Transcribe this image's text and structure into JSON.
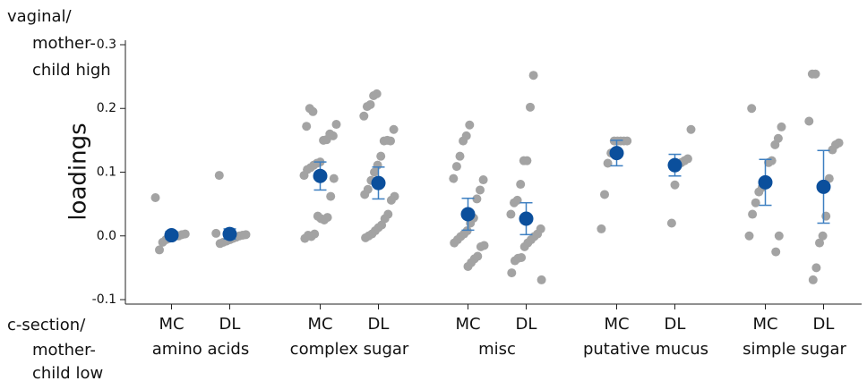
{
  "chart_data": {
    "type": "strip",
    "y_label": "loadings",
    "top_label": [
      "vaginal/",
      "mother-",
      "child high"
    ],
    "bottom_label": [
      "c-section/",
      "mother-",
      "child low"
    ],
    "ylim": [
      -0.107,
      0.307
    ],
    "yticks": [
      0.3,
      0.2,
      0.1,
      {
        "value": 0,
        "label": "0.0"
      },
      -0.1
    ],
    "point_color": "#a3a3a3",
    "mean_color": "#0b4f9c",
    "error_color": "#3d7fc1",
    "groups": [
      {
        "name": "amino acids",
        "series": [
          {
            "name": "MC",
            "points": [
              0.06,
              0.003,
              0.002,
              0.0,
              0.0,
              -0.002,
              -0.004,
              -0.006,
              -0.01,
              -0.022
            ],
            "mean": 0.001,
            "error": 0.006
          },
          {
            "name": "DL",
            "points": [
              0.095,
              0.004,
              0.002,
              0.001,
              0.0,
              -0.002,
              -0.004,
              -0.006,
              -0.008,
              -0.01,
              -0.012
            ],
            "mean": 0.003,
            "error": 0.008
          }
        ]
      },
      {
        "name": "complex sugar",
        "series": [
          {
            "name": "MC",
            "points": [
              0.195,
              0.2,
              0.172,
              0.175,
              0.157,
              0.16,
              0.151,
              0.15,
              0.116,
              0.114,
              0.111,
              0.107,
              0.104,
              0.095,
              0.09,
              0.062,
              0.029,
              0.025,
              0.027,
              0.031,
              0.003,
              -0.001,
              0.001,
              -0.004
            ],
            "mean": 0.094,
            "error": 0.022
          },
          {
            "name": "DL",
            "points": [
              0.223,
              0.22,
              0.206,
              0.203,
              0.188,
              0.167,
              0.149,
              0.15,
              0.149,
              0.125,
              0.111,
              0.1,
              0.087,
              0.073,
              0.065,
              0.062,
              0.056,
              0.034,
              0.027,
              0.017,
              0.013,
              0.008,
              0.003,
              0.0,
              -0.003
            ],
            "mean": 0.083,
            "error": 0.025
          }
        ]
      },
      {
        "name": "misc",
        "series": [
          {
            "name": "MC",
            "points": [
              0.174,
              0.157,
              0.149,
              0.125,
              0.109,
              0.09,
              0.088,
              0.072,
              0.058,
              0.028,
              0.02,
              0.008,
              0.003,
              -0.001,
              -0.006,
              -0.011,
              -0.015,
              -0.017,
              -0.032,
              -0.036,
              -0.042,
              -0.048
            ],
            "mean": 0.034,
            "error": 0.025
          },
          {
            "name": "DL",
            "points": [
              0.252,
              0.202,
              0.118,
              0.118,
              0.081,
              0.056,
              0.052,
              0.034,
              0.011,
              0.003,
              -0.001,
              -0.006,
              -0.011,
              -0.017,
              -0.034,
              -0.035,
              -0.039,
              -0.058,
              -0.069
            ],
            "mean": 0.027,
            "error": 0.025
          }
        ]
      },
      {
        "name": "putative mucus",
        "series": [
          {
            "name": "MC",
            "points": [
              0.149,
              0.149,
              0.149,
              0.149,
              0.149,
              0.13,
              0.114,
              0.065,
              0.011
            ],
            "mean": 0.13,
            "error": 0.02
          },
          {
            "name": "DL",
            "points": [
              0.167,
              0.121,
              0.118,
              0.115,
              0.111,
              0.08,
              0.02
            ],
            "mean": 0.111,
            "error": 0.017
          }
        ]
      },
      {
        "name": "simple sugar",
        "series": [
          {
            "name": "MC",
            "points": [
              0.2,
              0.171,
              0.153,
              0.143,
              0.118,
              0.115,
              0.083,
              0.076,
              0.069,
              0.052,
              0.034,
              0.0,
              0.0,
              -0.025
            ],
            "mean": 0.084,
            "error": 0.036
          },
          {
            "name": "DL",
            "points": [
              0.254,
              0.254,
              0.18,
              0.146,
              0.143,
              0.135,
              0.09,
              0.031,
              0.0,
              -0.011,
              -0.05,
              -0.069
            ],
            "mean": 0.077,
            "error": 0.057
          }
        ]
      }
    ]
  }
}
